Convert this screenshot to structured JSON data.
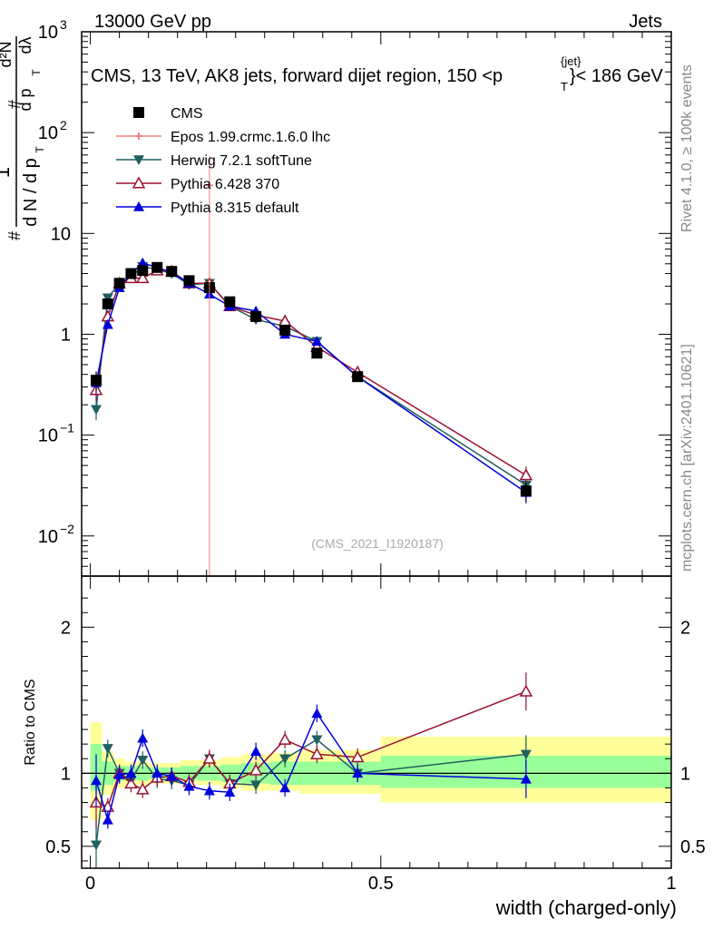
{
  "header": {
    "process": "13000 GeV pp",
    "category": "Jets",
    "title": "CMS, 13 TeV, AK8 jets, forward dijet region, 150 <p",
    "title_sup": "{jet}",
    "title_sub": "T",
    "title_end": "}< 186 GeV",
    "analysis_id": "(CMS_2021_I1920187)",
    "side_rivet": "Rivet 4.1.0, ≥ 100k events",
    "side_site": "mcplots.cern.ch [arXiv:2401.10621]"
  },
  "colors": {
    "data": "#000000",
    "epos": "#f08080",
    "herwig": "#1f5f5f",
    "py6": "#9b1030",
    "py8": "#0000dd",
    "band_inner": "#99ff99",
    "band_outer": "#ffff99"
  },
  "chart_data": [
    {
      "type": "scatter",
      "panel": "main",
      "yscale": "log",
      "ylim": [
        0.004,
        1000
      ],
      "xlim": [
        -0.015,
        1.0
      ],
      "ylabel_parts": [
        "1",
        "#",
        "d N / d p",
        "T",
        "#",
        "d²N",
        "d p",
        "T",
        "dλ"
      ],
      "yticks": [
        {
          "v": 0.01,
          "base": "10",
          "exp": "−2"
        },
        {
          "v": 0.1,
          "base": "10",
          "exp": "−1"
        },
        {
          "v": 1,
          "base": "1",
          "exp": ""
        },
        {
          "v": 10,
          "base": "10",
          "exp": ""
        },
        {
          "v": 100,
          "base": "10",
          "exp": "2"
        },
        {
          "v": 1000,
          "base": "10",
          "exp": "3"
        }
      ],
      "x": [
        0.01,
        0.03,
        0.05,
        0.07,
        0.09,
        0.115,
        0.14,
        0.17,
        0.205,
        0.24,
        0.285,
        0.335,
        0.39,
        0.46,
        0.75
      ],
      "series": [
        {
          "name": "CMS",
          "key": "data",
          "marker": "square",
          "values": [
            0.35,
            2.0,
            3.2,
            4.0,
            4.3,
            4.6,
            4.2,
            3.4,
            2.9,
            2.1,
            1.5,
            1.1,
            0.65,
            0.38,
            0.028
          ]
        },
        {
          "name": "Epos 1.99.crmc.1.6.0 lhc",
          "key": "epos",
          "marker": "cross",
          "values": [
            null,
            null,
            null,
            null,
            null,
            null,
            null,
            null,
            30,
            null,
            null,
            null,
            null,
            null,
            null
          ]
        },
        {
          "name": "Herwig 7.2.1 softTune",
          "key": "herwig",
          "marker": "triangle-down",
          "values": [
            0.18,
            2.3,
            3.2,
            3.7,
            4.7,
            4.4,
            4.0,
            3.1,
            3.2,
            1.9,
            1.4,
            1.2,
            0.85,
            0.38,
            0.032
          ]
        },
        {
          "name": "Pythia 6.428 370",
          "key": "py6",
          "marker": "triangle-open",
          "values": [
            0.28,
            1.5,
            3.2,
            3.6,
            3.6,
            4.3,
            4.2,
            3.2,
            3.2,
            1.9,
            1.55,
            1.35,
            0.75,
            0.42,
            0.04
          ]
        },
        {
          "name": "Pythia 8.315 default",
          "key": "py8",
          "marker": "triangle-up",
          "values": [
            0.33,
            1.25,
            2.9,
            4.0,
            5.1,
            4.6,
            4.1,
            3.2,
            2.5,
            1.9,
            1.7,
            1.0,
            0.85,
            0.38,
            0.027
          ]
        }
      ]
    },
    {
      "type": "line",
      "panel": "ratio",
      "ylim": [
        0.35,
        2.35
      ],
      "xlabel": "width (charged-only)",
      "ylabel": "Ratio to CMS",
      "yticks": [
        0.5,
        1,
        2
      ],
      "xticks": [
        0,
        0.5,
        1
      ],
      "xticklabels": [
        "0",
        "0.5",
        "1"
      ],
      "bands": {
        "edges": [
          0,
          0.02,
          0.04,
          0.06,
          0.08,
          0.1,
          0.13,
          0.155,
          0.185,
          0.225,
          0.26,
          0.31,
          0.36,
          0.42,
          0.5,
          1.0
        ],
        "inner": [
          [
            0.88,
            1.2
          ],
          [
            0.92,
            1.08
          ],
          [
            0.95,
            1.05
          ],
          [
            0.95,
            1.05
          ],
          [
            0.95,
            1.05
          ],
          [
            0.96,
            1.04
          ],
          [
            0.96,
            1.04
          ],
          [
            0.96,
            1.05
          ],
          [
            0.95,
            1.05
          ],
          [
            0.94,
            1.06
          ],
          [
            0.93,
            1.07
          ],
          [
            0.92,
            1.08
          ],
          [
            0.92,
            1.08
          ],
          [
            0.92,
            1.08
          ],
          [
            0.9,
            1.12
          ]
        ],
        "outer": [
          [
            0.68,
            1.35
          ],
          [
            0.85,
            1.15
          ],
          [
            0.9,
            1.1
          ],
          [
            0.92,
            1.08
          ],
          [
            0.92,
            1.08
          ],
          [
            0.93,
            1.07
          ],
          [
            0.93,
            1.07
          ],
          [
            0.93,
            1.09
          ],
          [
            0.92,
            1.09
          ],
          [
            0.9,
            1.11
          ],
          [
            0.88,
            1.13
          ],
          [
            0.88,
            1.14
          ],
          [
            0.86,
            1.16
          ],
          [
            0.86,
            1.16
          ],
          [
            0.8,
            1.25
          ]
        ]
      },
      "x": [
        0.01,
        0.03,
        0.05,
        0.07,
        0.09,
        0.115,
        0.14,
        0.17,
        0.205,
        0.24,
        0.285,
        0.335,
        0.39,
        0.46,
        0.75
      ],
      "series": [
        {
          "name": "Herwig 7.2.1 softTune",
          "key": "herwig",
          "marker": "triangle-down",
          "values": [
            0.51,
            1.17,
            1.0,
            0.95,
            1.09,
            0.96,
            0.95,
            0.92,
            1.1,
            0.93,
            0.92,
            1.1,
            1.23,
            1.0,
            1.13
          ]
        },
        {
          "name": "Pythia 6.428 370",
          "key": "py6",
          "marker": "triangle-open",
          "values": [
            0.8,
            0.77,
            1.0,
            0.93,
            0.89,
            0.97,
            0.98,
            0.94,
            1.1,
            0.93,
            1.02,
            1.23,
            1.13,
            1.11,
            1.56
          ]
        },
        {
          "name": "Pythia 8.315 default",
          "key": "py8",
          "marker": "triangle-up",
          "values": [
            0.95,
            0.68,
            0.99,
            1.0,
            1.24,
            1.0,
            0.98,
            0.91,
            0.88,
            0.87,
            1.15,
            0.9,
            1.41,
            1.0,
            0.96
          ]
        }
      ]
    }
  ]
}
